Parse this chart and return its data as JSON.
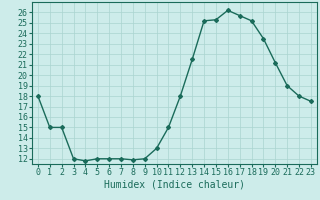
{
  "x": [
    0,
    1,
    2,
    3,
    4,
    5,
    6,
    7,
    8,
    9,
    10,
    11,
    12,
    13,
    14,
    15,
    16,
    17,
    18,
    19,
    20,
    21,
    22,
    23
  ],
  "y": [
    18,
    15,
    15,
    12,
    11.8,
    12,
    12,
    12,
    11.9,
    12,
    13,
    15,
    18,
    21.5,
    25.2,
    25.3,
    26.2,
    25.7,
    25.2,
    23.5,
    21.2,
    19,
    18,
    17.5
  ],
  "line_color": "#1a6b5a",
  "marker": "D",
  "markersize": 2,
  "bg_color": "#cdecea",
  "grid_color": "#aad4d0",
  "xlabel": "Humidex (Indice chaleur)",
  "xlim": [
    -0.5,
    23.5
  ],
  "ylim": [
    11.5,
    27
  ],
  "yticks": [
    12,
    13,
    14,
    15,
    16,
    17,
    18,
    19,
    20,
    21,
    22,
    23,
    24,
    25,
    26
  ],
  "xticks": [
    0,
    1,
    2,
    3,
    4,
    5,
    6,
    7,
    8,
    9,
    10,
    11,
    12,
    13,
    14,
    15,
    16,
    17,
    18,
    19,
    20,
    21,
    22,
    23
  ],
  "xlabel_fontsize": 7,
  "tick_fontsize": 6,
  "linewidth": 1.0
}
